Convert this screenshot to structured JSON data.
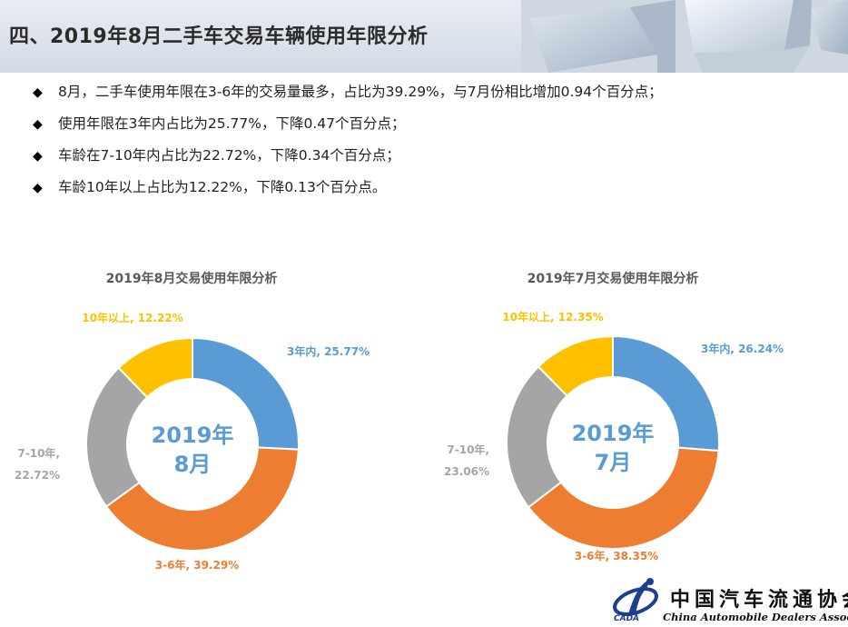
{
  "header": {
    "title": "四、2019年8月二手车交易车辆使用年限分析"
  },
  "bullets": [
    "8月，二手车使用年限在3-6年的交易量最多，占比为39.29%，与7月份相比增加0.94个百分点；",
    "使用年限在3年内占比为25.77%，下降0.47个百分点；",
    "车龄在7-10年内占比为22.72%，下降0.34个百分点；",
    "车龄10年以上占比为12.22%，下降0.13个百分点。"
  ],
  "bullet_symbol": "◆",
  "colors": {
    "within_3": "#5b9bd5",
    "y3_6": "#ed7d31",
    "y7_10": "#a5a5a5",
    "over_10": "#ffc000",
    "center": "#5b9bd5"
  },
  "chart_data": [
    {
      "type": "pie",
      "title": "2019年8月交易使用年限分析",
      "center_line1": "2019年",
      "center_line2": "8月",
      "donut": true,
      "categories": [
        "3年内",
        "3-6年",
        "7-10年",
        "10年以上"
      ],
      "values": [
        25.77,
        39.29,
        22.72,
        12.22
      ],
      "labels": [
        "3年内, 25.77%",
        "3-6年, 39.29%",
        "7-10年,",
        "10年以上, 12.22%"
      ],
      "label_extra": {
        "7-10年,": "22.72%"
      }
    },
    {
      "type": "pie",
      "title": "2019年7月交易使用年限分析",
      "center_line1": "2019年",
      "center_line2": "7月",
      "donut": true,
      "categories": [
        "3年内",
        "3-6年",
        "7-10年",
        "10年以上"
      ],
      "values": [
        26.24,
        38.35,
        23.06,
        12.35
      ],
      "labels": [
        "3年内, 26.24%",
        "3-6年, 38.35%",
        "7-10年,",
        "10年以上, 12.35%"
      ],
      "label_extra": {
        "7-10年,": "23.06%"
      }
    }
  ],
  "logo": {
    "cn": "中国汽车流通协会",
    "en": "China Automobile Dealers Association",
    "abbr": "CADA"
  }
}
